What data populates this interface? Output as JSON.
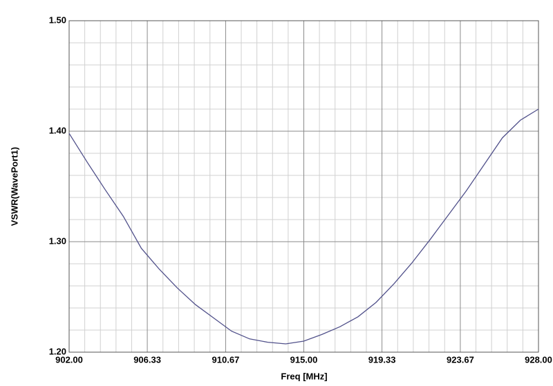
{
  "chart_data": {
    "type": "line",
    "x_label": "Freq [MHz]",
    "y_label": "VSWR(WavePort1)",
    "x": [
      902,
      903,
      904,
      905,
      906,
      907,
      908,
      909,
      910,
      911,
      912,
      913,
      914,
      915,
      916,
      917,
      918,
      919,
      920,
      921,
      922,
      923,
      924,
      925,
      926,
      927,
      928
    ],
    "series": [
      {
        "color": "#50508a",
        "values": [
          1.398,
          1.372,
          1.347,
          1.323,
          1.294,
          1.275,
          1.258,
          1.243,
          1.231,
          1.219,
          1.212,
          1.209,
          1.2075,
          1.21,
          1.216,
          1.223,
          1.232,
          1.245,
          1.262,
          1.281,
          1.302,
          1.324,
          1.346,
          1.37,
          1.394,
          1.41,
          1.42
        ]
      }
    ],
    "xlim": [
      902,
      928
    ],
    "xticks": [
      {
        "value": 902,
        "label": "902.00"
      },
      906.33,
      910.67,
      {
        "value": 915,
        "label": "915.00"
      },
      919.33,
      923.67,
      {
        "value": 928,
        "label": "928.00"
      }
    ],
    "ylim": [
      1.2,
      1.5
    ],
    "yticks": [
      {
        "value": 1.2,
        "label": "1.20"
      },
      {
        "value": 1.3,
        "label": "1.30"
      },
      {
        "value": 1.4,
        "label": "1.40"
      },
      {
        "value": 1.5,
        "label": "1.50"
      }
    ],
    "grid": true
  }
}
